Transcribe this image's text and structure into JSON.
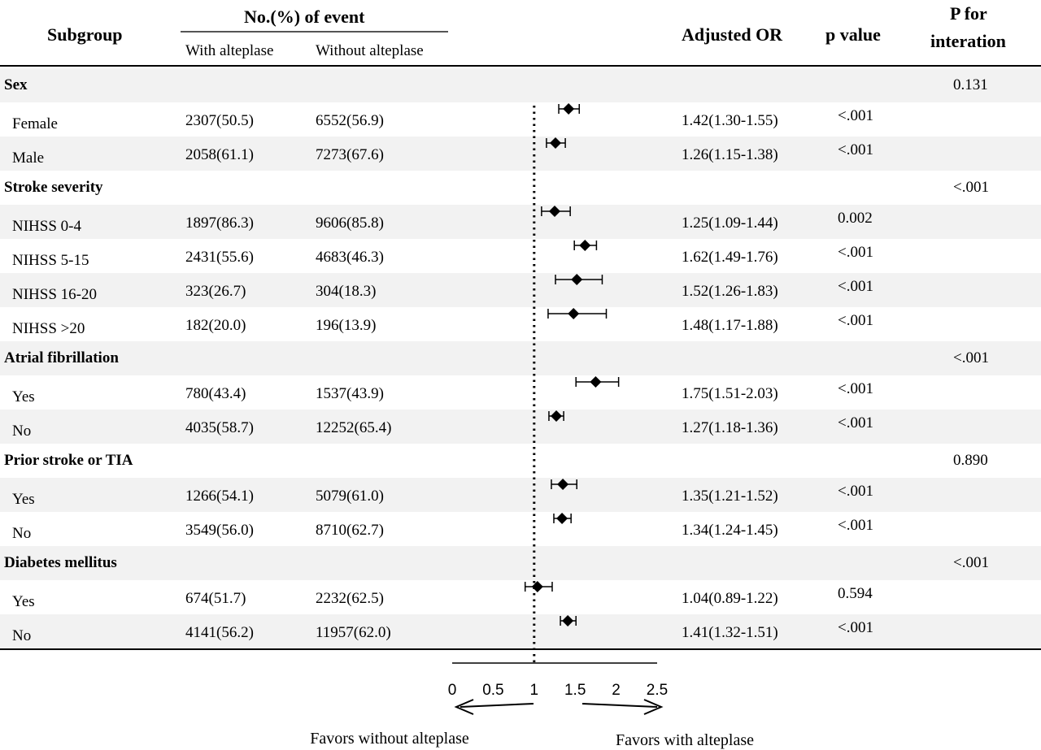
{
  "header": {
    "subgroup": "Subgroup",
    "event_title": "No.(%) of event",
    "with_label": "With alteplase",
    "without_label": "Without alteplase",
    "or_label": "Adjusted OR",
    "p_label": "p value",
    "pint_line1": "P for",
    "pint_line2": "interation"
  },
  "rows": [
    {
      "kind": "group",
      "label": "Sex",
      "p_int": "0.131"
    },
    {
      "kind": "item",
      "label": "Female",
      "with": "2307(50.5)",
      "without": "6552(56.9)",
      "or_text": "1.42(1.30-1.55)",
      "p": "<.001"
    },
    {
      "kind": "item",
      "label": "Male",
      "with": "2058(61.1)",
      "without": "7273(67.6)",
      "or_text": "1.26(1.15-1.38)",
      "p": "<.001"
    },
    {
      "kind": "group",
      "label": "Stroke severity",
      "p_int": "<.001"
    },
    {
      "kind": "item",
      "label": "NIHSS 0-4",
      "with": "1897(86.3)",
      "without": "9606(85.8)",
      "or_text": "1.25(1.09-1.44)",
      "p": "0.002"
    },
    {
      "kind": "item",
      "label": "NIHSS 5-15",
      "with": "2431(55.6)",
      "without": "4683(46.3)",
      "or_text": "1.62(1.49-1.76)",
      "p": "<.001"
    },
    {
      "kind": "item",
      "label": "NIHSS 16-20",
      "with": "323(26.7)",
      "without": "304(18.3)",
      "or_text": "1.52(1.26-1.83)",
      "p": "<.001"
    },
    {
      "kind": "item",
      "label": "NIHSS >20",
      "with": "182(20.0)",
      "without": "196(13.9)",
      "or_text": "1.48(1.17-1.88)",
      "p": "<.001"
    },
    {
      "kind": "group",
      "label": "Atrial fibrillation",
      "p_int": "<.001"
    },
    {
      "kind": "item",
      "label": "Yes",
      "with": "780(43.4)",
      "without": "1537(43.9)",
      "or_text": "1.75(1.51-2.03)",
      "p": "<.001"
    },
    {
      "kind": "item",
      "label": "No",
      "with": "4035(58.7)",
      "without": "12252(65.4)",
      "or_text": "1.27(1.18-1.36)",
      "p": "<.001"
    },
    {
      "kind": "group",
      "label": "Prior stroke or TIA",
      "p_int": "0.890"
    },
    {
      "kind": "item",
      "label": "Yes",
      "with": "1266(54.1)",
      "without": "5079(61.0)",
      "or_text": "1.35(1.21-1.52)",
      "p": "<.001"
    },
    {
      "kind": "item",
      "label": "No",
      "with": "3549(56.0)",
      "without": "8710(62.7)",
      "or_text": "1.34(1.24-1.45)",
      "p": "<.001"
    },
    {
      "kind": "group",
      "label": "Diabetes mellitus",
      "p_int": "<.001"
    },
    {
      "kind": "item",
      "label": "Yes",
      "with": "674(51.7)",
      "without": "2232(62.5)",
      "or_text": "1.04(0.89-1.22)",
      "p": "0.594"
    },
    {
      "kind": "item",
      "label": "No",
      "with": "4141(56.2)",
      "without": "11957(62.0)",
      "or_text": "1.41(1.32-1.51)",
      "p": "<.001"
    }
  ],
  "chart_data": {
    "type": "forest",
    "reference_line": 1,
    "xlim": [
      0,
      2.5
    ],
    "ticks": [
      0,
      0.5,
      1,
      1.5,
      2,
      2.5
    ],
    "tick_labels": [
      "0",
      "0.5",
      "1",
      "1.5",
      "2",
      "2.5"
    ],
    "left_arrow_label": "Favors without alteplase",
    "right_arrow_label": "Favors with alteplase",
    "points": [
      {
        "label": "Female",
        "or": 1.42,
        "lo": 1.3,
        "hi": 1.55
      },
      {
        "label": "Male",
        "or": 1.26,
        "lo": 1.15,
        "hi": 1.38
      },
      {
        "label": "NIHSS 0-4",
        "or": 1.25,
        "lo": 1.09,
        "hi": 1.44
      },
      {
        "label": "NIHSS 5-15",
        "or": 1.62,
        "lo": 1.49,
        "hi": 1.76
      },
      {
        "label": "NIHSS 16-20",
        "or": 1.52,
        "lo": 1.26,
        "hi": 1.83
      },
      {
        "label": "NIHSS >20",
        "or": 1.48,
        "lo": 1.17,
        "hi": 1.88
      },
      {
        "label": "Yes",
        "or": 1.75,
        "lo": 1.51,
        "hi": 2.03
      },
      {
        "label": "No",
        "or": 1.27,
        "lo": 1.18,
        "hi": 1.36
      },
      {
        "label": "Yes",
        "or": 1.35,
        "lo": 1.21,
        "hi": 1.52
      },
      {
        "label": "No",
        "or": 1.34,
        "lo": 1.24,
        "hi": 1.45
      },
      {
        "label": "Yes",
        "or": 1.04,
        "lo": 0.89,
        "hi": 1.22
      },
      {
        "label": "No",
        "or": 1.41,
        "lo": 1.32,
        "hi": 1.51
      }
    ]
  }
}
